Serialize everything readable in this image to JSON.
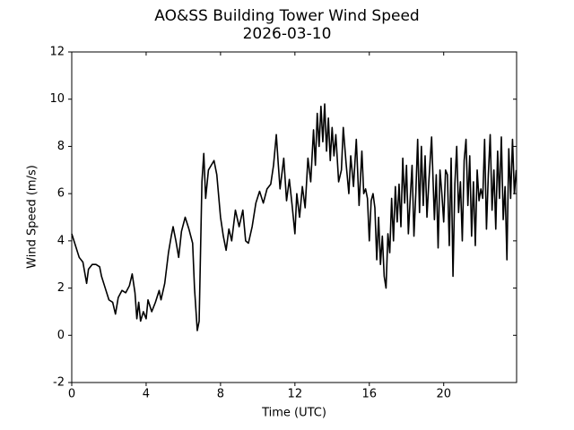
{
  "chart_data": {
    "type": "line",
    "title": "AO&SS Building Tower Wind Speed",
    "subtitle": "2026-03-10",
    "x_label": "Time (UTC)",
    "y_label": "Wind Speed (m/s)",
    "xlim": [
      0,
      23.92
    ],
    "xticks": [
      0,
      4,
      8,
      12,
      16,
      20
    ],
    "ylim": [
      -2,
      12
    ],
    "yticks": [
      -2,
      0,
      2,
      4,
      6,
      8,
      10,
      12
    ],
    "grid": false,
    "series": [
      {
        "name": "Wind Speed",
        "color": "#000000",
        "x": [
          0.0,
          0.2,
          0.4,
          0.6,
          0.8,
          0.9,
          1.1,
          1.3,
          1.5,
          1.6,
          1.8,
          2.0,
          2.2,
          2.35,
          2.5,
          2.7,
          2.9,
          3.1,
          3.25,
          3.4,
          3.5,
          3.6,
          3.7,
          3.85,
          4.0,
          4.1,
          4.3,
          4.5,
          4.7,
          4.8,
          5.0,
          5.2,
          5.35,
          5.45,
          5.6,
          5.75,
          5.9,
          6.1,
          6.3,
          6.5,
          6.6,
          6.7,
          6.75,
          6.85,
          7.0,
          7.1,
          7.2,
          7.35,
          7.5,
          7.65,
          7.8,
          8.0,
          8.15,
          8.3,
          8.45,
          8.6,
          8.8,
          9.0,
          9.2,
          9.35,
          9.5,
          9.7,
          9.9,
          10.1,
          10.3,
          10.5,
          10.7,
          10.85,
          11.0,
          11.1,
          11.2,
          11.4,
          11.55,
          11.7,
          11.85,
          12.0,
          12.1,
          12.25,
          12.4,
          12.55,
          12.7,
          12.85,
          13.0,
          13.1,
          13.2,
          13.3,
          13.4,
          13.5,
          13.6,
          13.7,
          13.8,
          13.9,
          14.0,
          14.1,
          14.2,
          14.35,
          14.5,
          14.6,
          14.75,
          14.9,
          15.0,
          15.15,
          15.3,
          15.45,
          15.6,
          15.7,
          15.8,
          15.9,
          16.0,
          16.1,
          16.2,
          16.3,
          16.4,
          16.5,
          16.6,
          16.7,
          16.8,
          16.9,
          17.0,
          17.1,
          17.2,
          17.3,
          17.4,
          17.5,
          17.6,
          17.7,
          17.8,
          17.9,
          18.0,
          18.1,
          18.2,
          18.3,
          18.4,
          18.5,
          18.6,
          18.7,
          18.8,
          18.9,
          19.0,
          19.1,
          19.2,
          19.35,
          19.5,
          19.6,
          19.7,
          19.8,
          19.9,
          20.0,
          20.1,
          20.2,
          20.3,
          20.4,
          20.5,
          20.6,
          20.7,
          20.8,
          20.9,
          21.0,
          21.1,
          21.2,
          21.3,
          21.4,
          21.5,
          21.6,
          21.7,
          21.8,
          21.9,
          22.0,
          22.1,
          22.2,
          22.3,
          22.4,
          22.5,
          22.6,
          22.7,
          22.8,
          22.9,
          23.0,
          23.1,
          23.2,
          23.3,
          23.4,
          23.5,
          23.6,
          23.7,
          23.8,
          23.9
        ],
        "values": [
          4.3,
          3.8,
          3.3,
          3.1,
          2.2,
          2.8,
          3.0,
          3.0,
          2.9,
          2.5,
          2.0,
          1.5,
          1.4,
          0.9,
          1.6,
          1.9,
          1.8,
          2.1,
          2.6,
          1.8,
          0.7,
          1.4,
          0.6,
          1.0,
          0.7,
          1.5,
          1.0,
          1.4,
          1.9,
          1.5,
          2.2,
          3.5,
          4.2,
          4.6,
          4.0,
          3.3,
          4.4,
          5.0,
          4.5,
          3.9,
          2.0,
          0.8,
          0.2,
          0.6,
          6.5,
          7.7,
          5.8,
          7.0,
          7.2,
          7.4,
          6.8,
          5.0,
          4.2,
          3.6,
          4.5,
          4.0,
          5.3,
          4.6,
          5.3,
          4.0,
          3.9,
          4.6,
          5.6,
          6.1,
          5.6,
          6.2,
          6.4,
          7.2,
          8.5,
          7.3,
          6.2,
          7.5,
          5.7,
          6.6,
          5.5,
          4.3,
          6.0,
          5.0,
          6.3,
          5.4,
          7.5,
          6.5,
          8.7,
          7.2,
          9.4,
          8.0,
          9.7,
          8.2,
          9.8,
          7.8,
          9.2,
          7.4,
          8.8,
          7.6,
          8.5,
          6.5,
          7.0,
          8.8,
          7.3,
          6.0,
          7.6,
          6.3,
          8.3,
          5.5,
          7.8,
          6.0,
          6.2,
          5.8,
          4.0,
          5.7,
          6.0,
          5.4,
          3.2,
          5.0,
          3.0,
          4.2,
          2.5,
          2.0,
          4.3,
          3.5,
          5.8,
          4.0,
          6.3,
          4.8,
          6.4,
          4.6,
          7.5,
          5.6,
          7.2,
          4.3,
          5.8,
          7.2,
          4.2,
          6.0,
          8.3,
          5.2,
          8.0,
          5.5,
          7.6,
          5.0,
          6.5,
          8.4,
          4.9,
          6.8,
          3.7,
          7.0,
          6.0,
          4.8,
          7.0,
          6.8,
          3.8,
          7.5,
          2.5,
          6.4,
          8.0,
          5.2,
          6.5,
          4.0,
          7.4,
          8.3,
          5.5,
          7.6,
          4.2,
          6.5,
          3.8,
          7.0,
          5.7,
          6.2,
          5.8,
          8.3,
          4.5,
          6.8,
          8.5,
          5.3,
          7.0,
          4.5,
          7.8,
          5.8,
          8.4,
          4.9,
          6.3,
          3.2,
          7.9,
          5.8,
          8.3,
          6.0,
          7.0
        ]
      }
    ]
  }
}
